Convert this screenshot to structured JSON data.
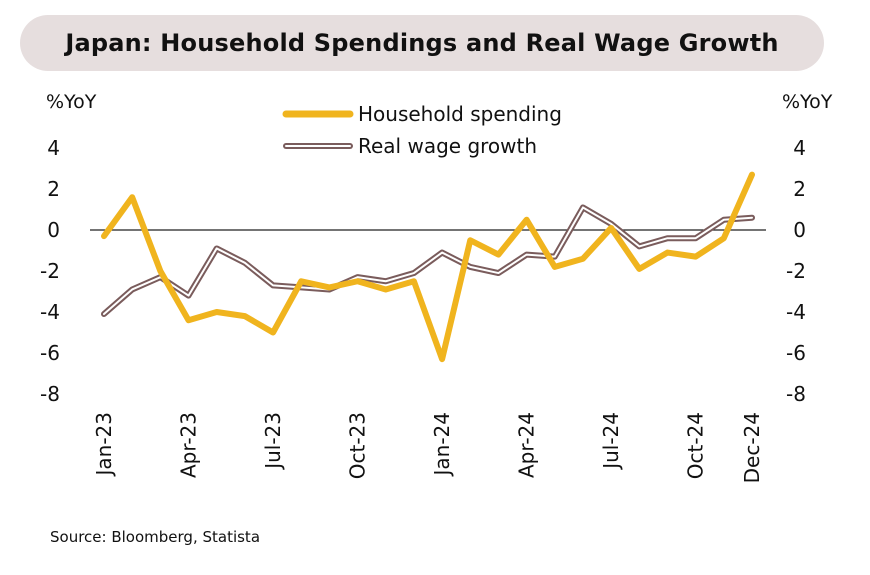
{
  "chart_data": {
    "type": "line",
    "title": "Japan: Household Spendings and Real Wage Growth",
    "left_axis_label": "%YoY",
    "right_axis_label": "%YoY",
    "ylim": [
      -8,
      4
    ],
    "y_ticks": [
      "4",
      "2",
      "0",
      "-2",
      "-4",
      "-6",
      "-8"
    ],
    "x_tick_labels": [
      {
        "index": 0,
        "label": "Jan-23"
      },
      {
        "index": 3,
        "label": "Apr-23"
      },
      {
        "index": 6,
        "label": "Jul-23"
      },
      {
        "index": 9,
        "label": "Oct-23"
      },
      {
        "index": 12,
        "label": "Jan-24"
      },
      {
        "index": 15,
        "label": "Apr-24"
      },
      {
        "index": 18,
        "label": "Jul-24"
      },
      {
        "index": 21,
        "label": "Oct-24"
      },
      {
        "index": 23,
        "label": "Dec-24"
      }
    ],
    "x": [
      "Jan-23",
      "Feb-23",
      "Mar-23",
      "Apr-23",
      "May-23",
      "Jun-23",
      "Jul-23",
      "Aug-23",
      "Sep-23",
      "Oct-23",
      "Nov-23",
      "Dec-23",
      "Jan-24",
      "Feb-24",
      "Mar-24",
      "Apr-24",
      "May-24",
      "Jun-24",
      "Jul-24",
      "Aug-24",
      "Sep-24",
      "Oct-24",
      "Nov-24",
      "Dec-24"
    ],
    "series": [
      {
        "name": "Household spending",
        "color": "#f0b41e",
        "style": "solid-thick",
        "values": [
          -0.3,
          1.6,
          -2.0,
          -4.4,
          -4.0,
          -4.2,
          -5.0,
          -2.5,
          -2.8,
          -2.5,
          -2.9,
          -2.5,
          -6.3,
          -0.5,
          -1.2,
          0.5,
          -1.8,
          -1.4,
          0.1,
          -1.9,
          -1.1,
          -1.3,
          -0.4,
          2.7
        ]
      },
      {
        "name": "Real wage growth",
        "color": "#7a5c5c",
        "style": "double-outline",
        "values": [
          -4.1,
          -2.9,
          -2.3,
          -3.2,
          -0.9,
          -1.6,
          -2.7,
          -2.8,
          -2.9,
          -2.3,
          -2.5,
          -2.1,
          -1.1,
          -1.8,
          -2.1,
          -1.2,
          -1.3,
          1.1,
          0.3,
          -0.8,
          -0.4,
          -0.4,
          0.5,
          0.6
        ]
      }
    ],
    "zero_line": true,
    "grid": false,
    "legend_position": "top-center"
  },
  "source": "Source: Bloomberg, Statista"
}
